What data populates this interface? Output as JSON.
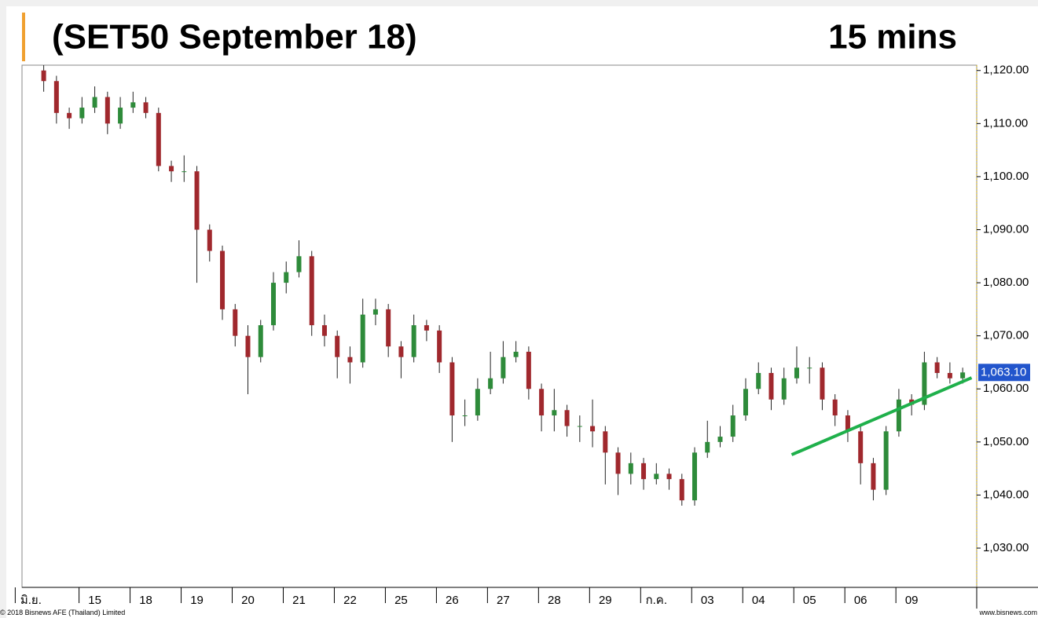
{
  "chart_data": {
    "type": "candlestick",
    "title": "(SET50 September 18)",
    "subtitle": "15 mins",
    "footer_left": "© 2018 Bisnews AFE (Thailand) Limited",
    "footer_right": "www.bisnews.com",
    "up_color": "#2e8b3a",
    "down_color": "#a0282d",
    "open": [
      1120,
      1118,
      1112,
      1111,
      1113,
      1115,
      1110,
      1113,
      1114,
      1112,
      1102,
      1101,
      1101,
      1090,
      1086,
      1075,
      1070,
      1066,
      1072,
      1080,
      1082,
      1085,
      1072,
      1070,
      1066,
      1065,
      1074,
      1075,
      1068,
      1066,
      1072,
      1071,
      1065,
      1055,
      1055,
      1060,
      1062,
      1066,
      1067,
      1060,
      1055,
      1056,
      1053,
      1053,
      1052,
      1048,
      1044,
      1046,
      1043,
      1044,
      1043,
      1039,
      1048,
      1050,
      1051,
      1055,
      1060,
      1063,
      1058,
      1062,
      1064,
      1064,
      1058,
      1055,
      1052,
      1046,
      1041,
      1052,
      1058,
      1057,
      1065,
      1063,
      1062
    ],
    "high": [
      1121,
      1119,
      1113,
      1115,
      1117,
      1116,
      1115,
      1116,
      1115,
      1113,
      1103,
      1104,
      1102,
      1091,
      1087,
      1076,
      1072,
      1073,
      1082,
      1084,
      1088,
      1086,
      1074,
      1071,
      1068,
      1077,
      1077,
      1076,
      1069,
      1074,
      1073,
      1072,
      1066,
      1058,
      1062,
      1067,
      1069,
      1069,
      1068,
      1061,
      1060,
      1057,
      1055,
      1058,
      1053,
      1049,
      1048,
      1047,
      1046,
      1045,
      1044,
      1049,
      1054,
      1053,
      1057,
      1062,
      1065,
      1064,
      1064,
      1068,
      1066,
      1065,
      1059,
      1056,
      1053,
      1047,
      1053,
      1060,
      1059,
      1067,
      1066,
      1065,
      1064
    ],
    "low": [
      1116,
      1110,
      1109,
      1110,
      1112,
      1108,
      1109,
      1112,
      1111,
      1101,
      1099,
      1099,
      1080,
      1084,
      1073,
      1068,
      1059,
      1065,
      1071,
      1078,
      1081,
      1070,
      1068,
      1062,
      1061,
      1064,
      1072,
      1066,
      1062,
      1065,
      1069,
      1063,
      1050,
      1053,
      1054,
      1059,
      1061,
      1065,
      1058,
      1052,
      1052,
      1051,
      1050,
      1049,
      1042,
      1040,
      1042,
      1041,
      1042,
      1041,
      1038,
      1038,
      1047,
      1049,
      1050,
      1054,
      1059,
      1056,
      1057,
      1061,
      1061,
      1056,
      1053,
      1050,
      1042,
      1039,
      1040,
      1051,
      1055,
      1056,
      1062,
      1061,
      1061
    ],
    "close": [
      1118,
      1112,
      1111,
      1113,
      1115,
      1110,
      1113,
      1114,
      1112,
      1102,
      1101,
      1101,
      1090,
      1086,
      1075,
      1070,
      1066,
      1072,
      1080,
      1082,
      1085,
      1072,
      1070,
      1066,
      1065,
      1074,
      1075,
      1068,
      1066,
      1072,
      1071,
      1065,
      1055,
      1055,
      1060,
      1062,
      1066,
      1067,
      1060,
      1055,
      1056,
      1053,
      1053,
      1052,
      1048,
      1044,
      1046,
      1043,
      1044,
      1043,
      1039,
      1048,
      1050,
      1051,
      1055,
      1060,
      1063,
      1058,
      1062,
      1064,
      1064,
      1058,
      1055,
      1052,
      1046,
      1041,
      1052,
      1058,
      1057,
      1065,
      1063,
      1062,
      1063.1
    ],
    "last_price": {
      "value": 1063.1,
      "label": "1,063.10"
    },
    "trendline": {
      "x": [
        58.6,
        72.7
      ],
      "y": [
        1047.6,
        1062.1
      ],
      "color": "#1fb04b"
    },
    "xlim": [
      -1.7,
      73.1
    ],
    "xticks": [
      {
        "value": -1,
        "label": "มิ.ย."
      },
      {
        "value": 4,
        "label": "15"
      },
      {
        "value": 8,
        "label": "18"
      },
      {
        "value": 12,
        "label": "19"
      },
      {
        "value": 16,
        "label": "20"
      },
      {
        "value": 20,
        "label": "21"
      },
      {
        "value": 24,
        "label": "22"
      },
      {
        "value": 28,
        "label": "25"
      },
      {
        "value": 32,
        "label": "26"
      },
      {
        "value": 36,
        "label": "27"
      },
      {
        "value": 40,
        "label": "28"
      },
      {
        "value": 44,
        "label": "29"
      },
      {
        "value": 48,
        "label": "ก.ค."
      },
      {
        "value": 52,
        "label": "03"
      },
      {
        "value": 56,
        "label": "04"
      },
      {
        "value": 60,
        "label": "05"
      },
      {
        "value": 64,
        "label": "06"
      },
      {
        "value": 68,
        "label": "09"
      }
    ],
    "ylim": [
      1022.6,
      1121
    ],
    "yticks": [
      {
        "value": 1030,
        "label": "1,030.00"
      },
      {
        "value": 1040,
        "label": "1,040.00"
      },
      {
        "value": 1050,
        "label": "1,050.00"
      },
      {
        "value": 1060,
        "label": "1,060.00"
      },
      {
        "value": 1070,
        "label": "1,070.00"
      },
      {
        "value": 1080,
        "label": "1,080.00"
      },
      {
        "value": 1090,
        "label": "1,090.00"
      },
      {
        "value": 1100,
        "label": "1,100.00"
      },
      {
        "value": 1110,
        "label": "1,110.00"
      },
      {
        "value": 1120,
        "label": "1,120.00"
      }
    ]
  }
}
